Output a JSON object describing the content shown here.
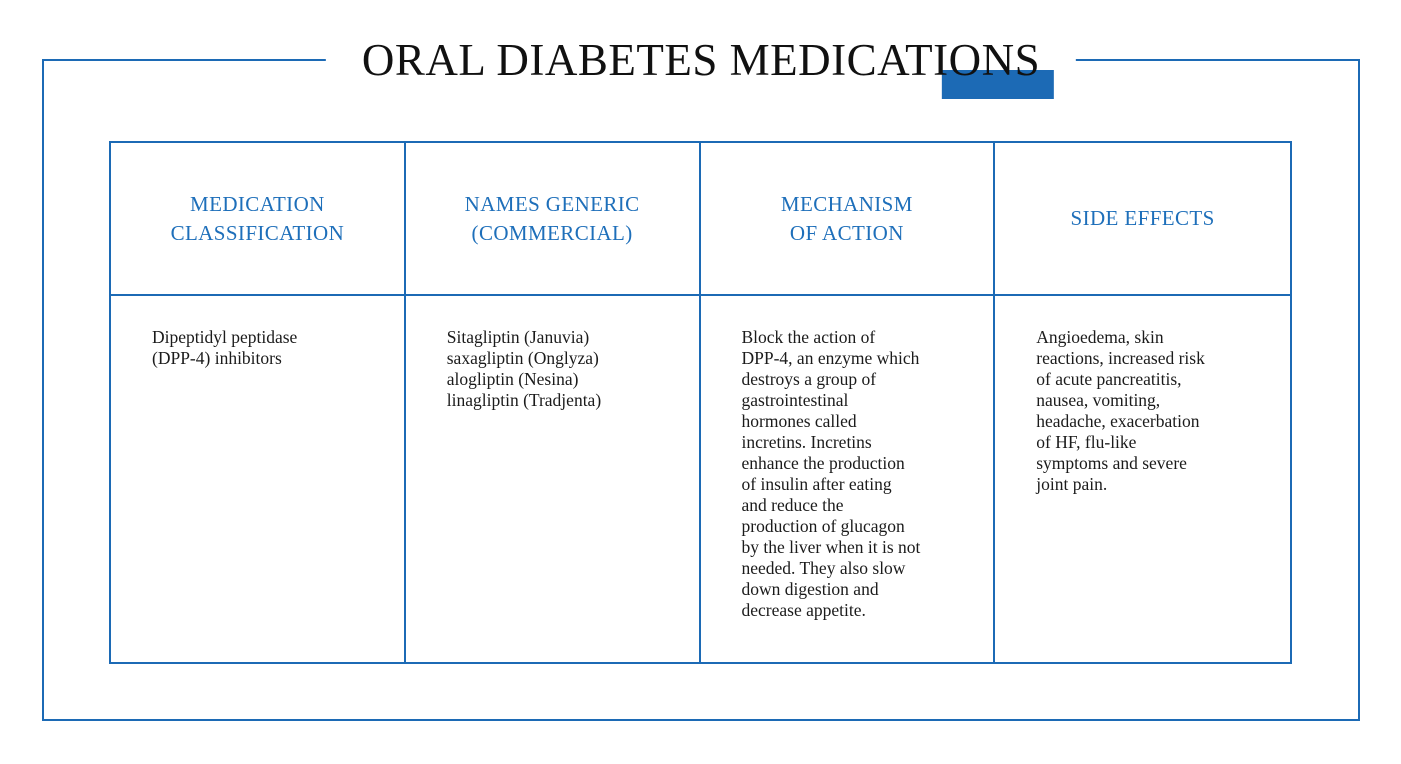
{
  "title": {
    "text": "ORAL DIABETES MEDICATIONS"
  },
  "colors": {
    "accent": "#1c6ab5",
    "header_text": "#1e6fba",
    "body_text": "#1b1b1b",
    "title_text": "#111111"
  },
  "table": {
    "headers": [
      {
        "id": "medication-classification",
        "label": "MEDICATION\nCLASSIFICATION"
      },
      {
        "id": "names-generic-commercial",
        "label": "NAMES GENERIC\n(COMMERCIAL)"
      },
      {
        "id": "mechanism-of-action",
        "label": "MECHANISM\nOF ACTION"
      },
      {
        "id": "side-effects",
        "label": "SIDE EFFECTS"
      }
    ],
    "rows": [
      {
        "classification": "Dipeptidyl peptidase\n(DPP-4) inhibitors",
        "names": "Sitagliptin (Januvia)\nsaxagliptin (Onglyza)\nalogliptin (Nesina)\nlinagliptin (Tradjenta)",
        "mechanism": "Block the action of\nDPP-4, an enzyme which\ndestroys a group of\ngastrointestinal\nhormones called\nincretins. Incretins\nenhance the production\nof insulin after eating\nand reduce the\nproduction of glucagon\nby the liver when it is not\nneeded. They also slow\ndown digestion and\ndecrease appetite.",
        "side_effects": "Angioedema, skin\nreactions, increased risk\nof acute pancreatitis,\nnausea, vomiting,\nheadache, exacerbation\nof HF, flu-like\nsymptoms and severe\njoint pain."
      }
    ]
  }
}
